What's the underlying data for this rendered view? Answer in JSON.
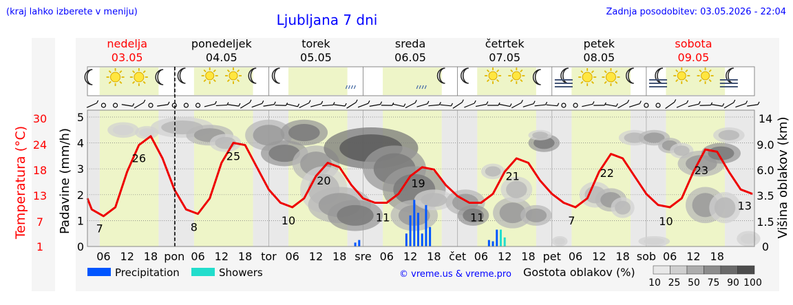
{
  "header": {
    "hint": "(kraj lahko izberete v meniju)",
    "title": "Ljubljana 7 dni",
    "updated": "Zadnja posodobitev: 03.05.2026 - 22:04"
  },
  "days": [
    {
      "name": "nedelja",
      "date": "03.05",
      "weekend": true,
      "abbr": ""
    },
    {
      "name": "ponedeljek",
      "date": "04.05",
      "weekend": false,
      "abbr": "pon"
    },
    {
      "name": "torek",
      "date": "05.05",
      "weekend": false,
      "abbr": "tor"
    },
    {
      "name": "sreda",
      "date": "06.05",
      "weekend": false,
      "abbr": "sre"
    },
    {
      "name": "četrtek",
      "date": "07.05",
      "weekend": false,
      "abbr": "čet"
    },
    {
      "name": "petek",
      "date": "08.05",
      "weekend": false,
      "abbr": "pet"
    },
    {
      "name": "sobota",
      "date": "09.05",
      "weekend": true,
      "abbr": "sob"
    }
  ],
  "weather_icons": [
    [
      "moon-icon",
      "sun-icon",
      "sun-icon",
      "moon-icon"
    ],
    [
      "moon-cloud-icon",
      "sun-cloud-icon",
      "sun-cloud-icon",
      "moon-cloud-icon"
    ],
    [
      "moon-cloud-icon",
      "clouds-icon",
      "clouds-icon",
      "rain-cloud-icon"
    ],
    [
      "clouds-icon",
      "clouds-icon",
      "rain-cloud-icon",
      "moon-cloud-icon"
    ],
    [
      "moon-cloud-icon",
      "sun-cloud-icon",
      "sun-cloud-icon",
      "moon-icon"
    ],
    [
      "fog-moon-icon",
      "sun-icon",
      "sun-icon",
      "moon-cloud-icon"
    ],
    [
      "fog-moon-icon",
      "sun-cloud-icon",
      "sun-cloud-icon",
      "fog-moon-icon"
    ]
  ],
  "legend": {
    "precipitation": "Precipitation",
    "showers": "Showers",
    "copyright": "© vreme.us & vreme.pro",
    "cloud_density_title": "Gostota oblakov (%)",
    "cloud_levels": [
      "10",
      "25",
      "50",
      "75",
      "90",
      "100"
    ],
    "precip_color": "#0055ff",
    "shower_color": "#22ddcc"
  },
  "colors": {
    "temperature": "#ee0000",
    "day_band": "#eef5c8",
    "night_band": "#e9e9e9",
    "panel": "#f5f5f5"
  },
  "chart_data": {
    "type": "line",
    "x_tick_hours": [
      "06",
      "12",
      "18"
    ],
    "y_left_temperature": {
      "label": "Temperatura (°C)",
      "ticks": [
        "1",
        "7",
        "13",
        "18",
        "24",
        "30"
      ],
      "range": [
        1,
        30
      ]
    },
    "y_left_precip": {
      "label": "Padavine (mm/h)",
      "ticks": [
        "0",
        "1",
        "2",
        "3",
        "4",
        "5"
      ],
      "range": [
        0,
        5
      ]
    },
    "y_right_cloud_height": {
      "label": "Višina oblakov (km)",
      "ticks": [
        "0",
        "1.5",
        "3.5",
        "6.0",
        "9.0",
        "14"
      ]
    },
    "temperature_series": {
      "hours": [
        0,
        3,
        6,
        9,
        12,
        15,
        18,
        21,
        24,
        27,
        30,
        33,
        36,
        39,
        42,
        45,
        48,
        51,
        54,
        57,
        60,
        63,
        66,
        69,
        72,
        75,
        78,
        81,
        84,
        87,
        90,
        93,
        96,
        99,
        102,
        105,
        108,
        111,
        114,
        117,
        120,
        123,
        126,
        129,
        132,
        135,
        138,
        141,
        144,
        147,
        150,
        153,
        156,
        159,
        162,
        165,
        168,
        171
      ],
      "values": [
        12,
        9.5,
        8,
        10,
        18,
        24,
        26,
        21,
        14,
        9.5,
        8.5,
        12,
        20,
        24.5,
        24,
        19,
        14,
        11,
        10,
        12,
        17,
        20,
        19,
        15,
        12,
        11,
        11,
        13,
        17,
        19,
        18.5,
        15,
        12.5,
        11,
        11,
        13,
        18,
        21,
        20,
        16,
        13,
        11,
        10,
        12,
        18,
        22,
        21,
        17,
        13,
        10.5,
        10,
        12,
        18,
        23,
        22.5,
        18,
        14,
        13
      ]
    },
    "temperature_labels": [
      {
        "hour": 5,
        "text": "7"
      },
      {
        "hour": 15,
        "text": "26"
      },
      {
        "hour": 29,
        "text": "8"
      },
      {
        "hour": 39,
        "text": "25"
      },
      {
        "hour": 53,
        "text": "10"
      },
      {
        "hour": 62,
        "text": "20"
      },
      {
        "hour": 77,
        "text": "11"
      },
      {
        "hour": 86,
        "text": "19"
      },
      {
        "hour": 101,
        "text": "11"
      },
      {
        "hour": 110,
        "text": "21"
      },
      {
        "hour": 125,
        "text": "7"
      },
      {
        "hour": 134,
        "text": "22"
      },
      {
        "hour": 149,
        "text": "10"
      },
      {
        "hour": 158,
        "text": "23"
      },
      {
        "hour": 169,
        "text": "13"
      }
    ],
    "precipitation": [
      {
        "hour": 70,
        "value": 0.15,
        "kind": "rain"
      },
      {
        "hour": 71,
        "value": 0.25,
        "kind": "rain"
      },
      {
        "hour": 83,
        "value": 0.5,
        "kind": "rain"
      },
      {
        "hour": 84,
        "value": 1.2,
        "kind": "rain"
      },
      {
        "hour": 85,
        "value": 1.8,
        "kind": "rain"
      },
      {
        "hour": 86,
        "value": 1.3,
        "kind": "rain"
      },
      {
        "hour": 87,
        "value": 0.5,
        "kind": "rain"
      },
      {
        "hour": 88,
        "value": 1.6,
        "kind": "rain"
      },
      {
        "hour": 89,
        "value": 0.75,
        "kind": "rain"
      },
      {
        "hour": 104,
        "value": 0.25,
        "kind": "rain"
      },
      {
        "hour": 105,
        "value": 0.2,
        "kind": "rain"
      },
      {
        "hour": 106,
        "value": 0.65,
        "kind": "rain"
      },
      {
        "hour": 107,
        "value": 0.65,
        "kind": "shower"
      },
      {
        "hour": 108,
        "value": 0.35,
        "kind": "shower"
      }
    ]
  }
}
